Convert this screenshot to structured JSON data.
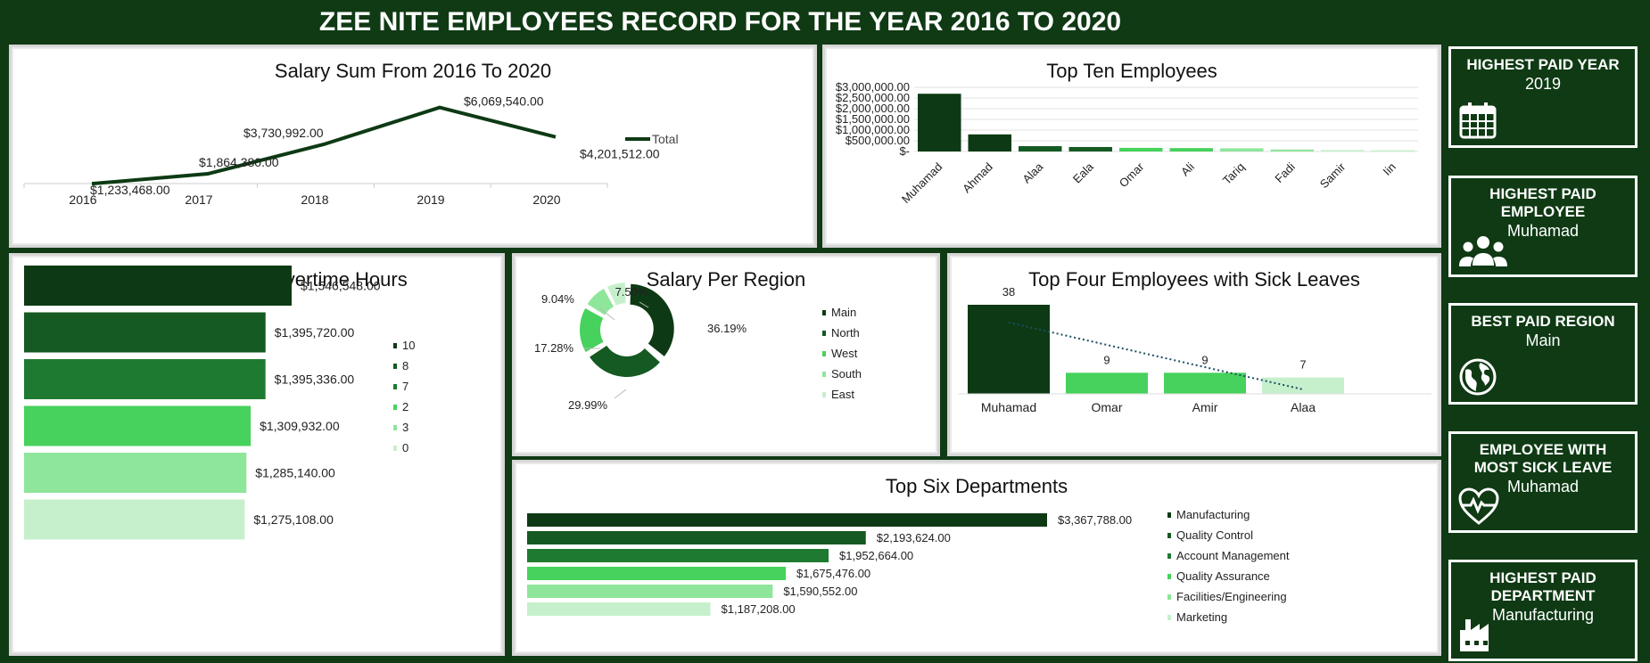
{
  "header": {
    "title": "ZEE NITE EMPLOYEES RECORD FOR THE YEAR 2016 TO 2020"
  },
  "colors": {
    "dark": "#0f3a14",
    "green1": "#0d3a14",
    "green2": "#145a22",
    "green3": "#1e7a30",
    "green4": "#46d25c",
    "green5": "#8ee69a",
    "green6": "#c6f0cc"
  },
  "salary_sum": {
    "title": "Salary Sum From 2016 To 2020",
    "legend": "Total",
    "chart_data": {
      "type": "line",
      "x": [
        "2016",
        "2017",
        "2018",
        "2019",
        "2020"
      ],
      "series": [
        {
          "name": "Total",
          "values": [
            1233468,
            1864380,
            3730992,
            6069540,
            4201512
          ]
        }
      ],
      "labels": [
        "$1,233,468.00",
        "$1,864,380.00",
        "$3,730,992.00",
        "$6,069,540.00",
        "$4,201,512.00"
      ]
    }
  },
  "top_ten": {
    "title": "Top Ten Employees",
    "chart_data": {
      "type": "bar",
      "categories": [
        "Muhamad",
        "Ahmad",
        "Alaa",
        "Eala",
        "Omar",
        "Ali",
        "Tariq",
        "Fadi",
        "Samir",
        "Iin"
      ],
      "values": [
        2700000,
        800000,
        250000,
        210000,
        170000,
        160000,
        150000,
        90000,
        70000,
        60000
      ],
      "yticks": [
        "$3,000,000.00",
        "$2,500,000.00",
        "$2,000,000.00",
        "$1,500,000.00",
        "$1,000,000.00",
        "$500,000.00",
        "$-"
      ],
      "ylim": [
        0,
        3000000
      ]
    }
  },
  "overtime": {
    "title": "Annual Salary Per Overtime Hours",
    "chart_data": {
      "type": "bar",
      "categories": [
        "10",
        "8",
        "7",
        "2",
        "3",
        "0"
      ],
      "values": [
        1546548,
        1395720,
        1395336,
        1309932,
        1285140,
        1275108
      ],
      "labels": [
        "$1,546,548.00",
        "$1,395,720.00",
        "$1,395,336.00",
        "$1,309,932.00",
        "$1,285,140.00",
        "$1,275,108.00"
      ]
    }
  },
  "region": {
    "title": "Salary Per Region",
    "chart_data": {
      "type": "pie",
      "categories": [
        "Main",
        "North",
        "West",
        "South",
        "East"
      ],
      "values": [
        36.19,
        29.99,
        17.28,
        9.04,
        7.5
      ],
      "labels": [
        "36.19%",
        "29.99%",
        "17.28%",
        "9.04%",
        "7.50%"
      ]
    }
  },
  "sick": {
    "title": "Top Four Employees with Sick Leaves",
    "chart_data": {
      "type": "bar",
      "categories": [
        "Muhamad",
        "Omar",
        "Amir",
        "Alaa"
      ],
      "values": [
        38,
        9,
        9,
        7
      ]
    }
  },
  "departments": {
    "title": "Top Six Departments",
    "chart_data": {
      "type": "bar",
      "categories": [
        "Manufacturing",
        "Quality Control",
        "Account Management",
        "Quality Assurance",
        "Facilities/Engineering",
        "Marketing"
      ],
      "values": [
        3367788,
        2193624,
        1952664,
        1675476,
        1590552,
        1187208
      ],
      "labels": [
        "$3,367,788.00",
        "$2,193,624.00",
        "$1,952,664.00",
        "$1,675,476.00",
        "$1,590,552.00",
        "$1,187,208.00"
      ]
    }
  },
  "kpis": [
    {
      "title": "HIGHEST PAID YEAR",
      "value": "2019",
      "icon": "calendar-icon"
    },
    {
      "title": "HIGHEST PAID EMPLOYEE",
      "value": "Muhamad",
      "icon": "people-icon"
    },
    {
      "title": "BEST PAID REGION",
      "value": "Main",
      "icon": "globe-icon"
    },
    {
      "title": "EMPLOYEE WITH MOST SICK LEAVE",
      "value": "Muhamad",
      "icon": "heartbeat-icon"
    },
    {
      "title": "HIGHEST PAID DEPARTMENT",
      "value": "Manufacturing",
      "icon": "factory-icon"
    }
  ]
}
